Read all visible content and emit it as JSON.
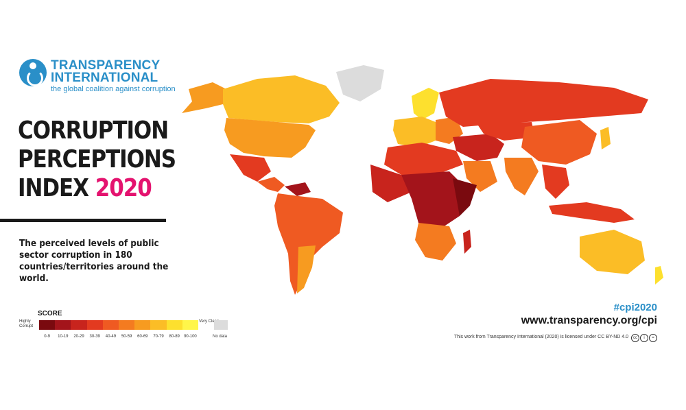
{
  "logo": {
    "line1": "TRANSPARENCY",
    "line2": "INTERNATIONAL",
    "tagline": "the global coalition against corruption"
  },
  "title": {
    "line1": "CORRUPTION",
    "line2": "PERCEPTIONS",
    "line3_prefix": "INDEX",
    "year": "2020"
  },
  "subtitle": "The perceived levels of public sector corruption in 180 countries/territories around the world.",
  "legend": {
    "title": "SCORE",
    "low_label": "Highly Corrupt",
    "high_label": "Very Clean",
    "ranges": [
      "0-9",
      "10-19",
      "20-29",
      "30-39",
      "40-49",
      "50-59",
      "60-69",
      "70-79",
      "80-89",
      "90-100"
    ],
    "colors": [
      "#7a0a0f",
      "#a3141b",
      "#c8241d",
      "#e33a20",
      "#ef5a22",
      "#f47b20",
      "#f79b20",
      "#fbbd26",
      "#fde02e",
      "#fff64a"
    ],
    "no_data_label": "No data",
    "no_data_color": "#dcdcdc"
  },
  "footer": {
    "hashtag": "#cpi2020",
    "url": "www.transparency.org/cpi",
    "license": "This work from Transparency International (2020) is licensed under CC BY-ND 4.0",
    "cc_icons": [
      "cc",
      "by",
      "nd"
    ]
  },
  "brand_colors": {
    "blue": "#2a8fc8",
    "magenta": "#e4136f"
  }
}
